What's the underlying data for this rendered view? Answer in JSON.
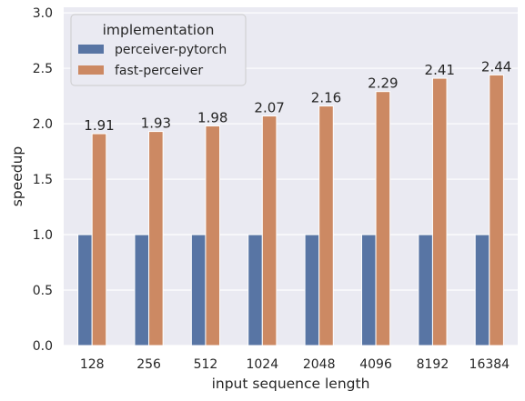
{
  "chart_data": {
    "type": "bar",
    "categories": [
      "128",
      "256",
      "512",
      "1024",
      "2048",
      "4096",
      "8192",
      "16384"
    ],
    "series": [
      {
        "name": "perceiver-pytorch",
        "values": [
          1,
          1,
          1,
          1,
          1,
          1,
          1,
          1
        ],
        "color": "#5875a4"
      },
      {
        "name": "fast-perceiver",
        "values": [
          1.91,
          1.93,
          1.98,
          2.07,
          2.16,
          2.29,
          2.41,
          2.44
        ],
        "color": "#cc8963"
      }
    ],
    "data_labels": [
      "1.91",
      "1.93",
      "1.98",
      "2.07",
      "2.16",
      "2.29",
      "2.41",
      "2.44"
    ],
    "xlabel": "input sequence length",
    "ylabel": "speedup",
    "ylim": [
      0,
      3.05
    ],
    "yticks": [
      0.0,
      0.5,
      1.0,
      1.5,
      2.0,
      2.5,
      3.0
    ],
    "ytick_labels": [
      "0.0",
      "0.5",
      "1.0",
      "1.5",
      "2.0",
      "2.5",
      "3.0"
    ],
    "legend_title": "implementation",
    "legend_position": "top-left",
    "background_color": "#eaeaf2",
    "grid": true
  }
}
